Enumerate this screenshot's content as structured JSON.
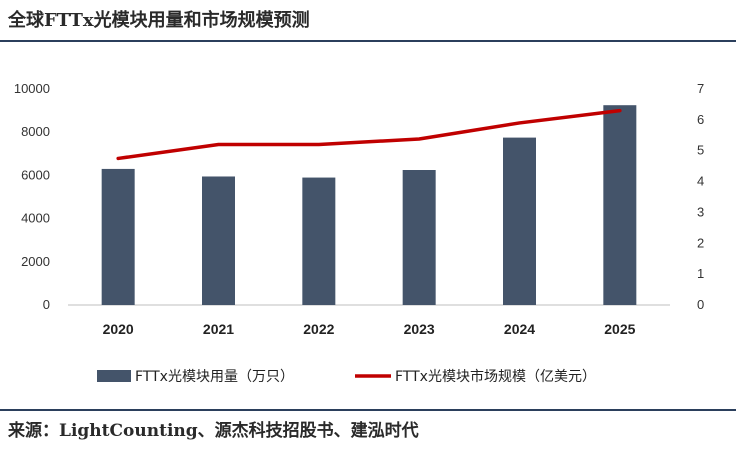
{
  "header": {
    "title": "全球FTTx光模块用量和市场规模预测"
  },
  "footer": {
    "source": "来源：LightCounting、源杰科技招股书、建泓时代"
  },
  "chart_data": {
    "type": "bar",
    "categories": [
      "2020",
      "2021",
      "2022",
      "2023",
      "2024",
      "2025"
    ],
    "series": [
      {
        "name": "FTTx光模块用量（万只）",
        "type": "bar",
        "axis": "left",
        "values": [
          6300,
          5950,
          5900,
          6250,
          7750,
          9250
        ],
        "color": "#44546a"
      },
      {
        "name": "FTTx光模块市场规模（亿美元）",
        "type": "line",
        "axis": "right",
        "values": [
          4.75,
          5.2,
          5.2,
          5.38,
          5.9,
          6.3
        ],
        "color": "#c00000"
      }
    ],
    "y_left": {
      "ylim": [
        0,
        10000
      ],
      "ticks": [
        "0",
        "2000",
        "4000",
        "6000",
        "8000",
        "10000"
      ]
    },
    "y_right": {
      "ylim": [
        0,
        7
      ],
      "ticks": [
        "0",
        "1",
        "2",
        "3",
        "4",
        "5",
        "6",
        "7"
      ]
    },
    "grid": false,
    "legend_position": "bottom"
  }
}
